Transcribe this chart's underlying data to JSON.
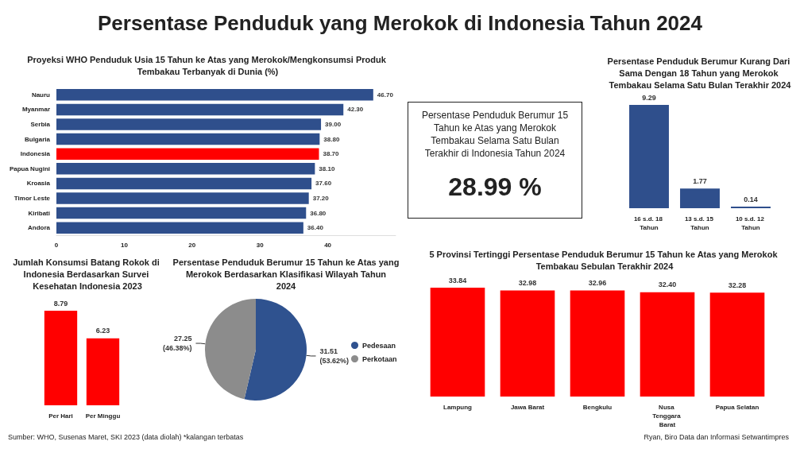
{
  "chart_data": [
    {
      "type": "other",
      "title": "Persentase Penduduk yang Merokok di Indonesia Tahun 2024",
      "annotations": [
        "Sumber: WHO, Susenas Maret, SKI 2023 (data diolah) *kalangan terbatas",
        "Ryan, Biro Data dan Informasi Setwantimpres"
      ]
    },
    {
      "type": "bar",
      "orientation": "horizontal",
      "title": "Proyeksi WHO Penduduk Usia 15 Tahun ke Atas yang Merokok/Mengkonsumsi Produk Tembakau Terbanyak di Dunia (%)",
      "categories": [
        "Nauru",
        "Myanmar",
        "Serbia",
        "Bulgaria",
        "Indonesia",
        "Papua Nugini",
        "Kroasia",
        "Timor Leste",
        "Kiribati",
        "Andora"
      ],
      "values": [
        46.7,
        42.3,
        39.0,
        38.8,
        38.7,
        38.1,
        37.6,
        37.2,
        36.8,
        36.4
      ],
      "colors": [
        "#2f4f8c",
        "#2f4f8c",
        "#2f4f8c",
        "#2f4f8c",
        "#ff0000",
        "#2f4f8c",
        "#2f4f8c",
        "#2f4f8c",
        "#2f4f8c",
        "#2f4f8c"
      ],
      "value_labels": [
        "46.70",
        "42.30",
        "39.00",
        "38.80",
        "38.70",
        "38.10",
        "37.60",
        "37.20",
        "36.80",
        "36.40"
      ],
      "xlim": [
        0,
        50
      ],
      "xticks": [
        0,
        10,
        20,
        30,
        40
      ]
    },
    {
      "type": "other",
      "title": "Persentase Penduduk Berumur 15 Tahun ke Atas yang Merokok Tembakau Selama Satu Bulan Terakhir di Indonesia Tahun 2024",
      "annotations": [
        "28.99 %"
      ]
    },
    {
      "type": "bar",
      "title": "Persentase Penduduk Berumur Kurang Dari Sama Dengan 18 Tahun yang Merokok Tembakau Selama Satu Bulan Terakhir 2024",
      "categories": [
        "16 s.d. 18 Tahun",
        "13 s.d. 15 Tahun",
        "10 s.d. 12 Tahun"
      ],
      "values": [
        9.29,
        1.77,
        0.14
      ],
      "color": "#2f4f8c",
      "value_labels": [
        "9.29",
        "1.77",
        "0.14"
      ]
    },
    {
      "type": "bar",
      "title": "Jumlah Konsumsi Batang Rokok di Indonesia Berdasarkan Survei Kesehatan Indonesia 2023",
      "categories": [
        "Per Hari",
        "Per Minggu"
      ],
      "values": [
        8.79,
        6.23
      ],
      "color": "#ff0000",
      "value_labels": [
        "8.79",
        "6.23"
      ]
    },
    {
      "type": "pie",
      "title": "Persentase Penduduk Berumur 15 Tahun ke Atas yang Merokok Berdasarkan Klasifikasi Wilayah Tahun 2024",
      "categories": [
        "Pedesaan",
        "Perkotaan"
      ],
      "values": [
        31.51,
        27.25
      ],
      "colors": [
        "#2f528f",
        "#8c8c8c"
      ],
      "value_labels": [
        "31.51\n(53.62%)",
        "27.25\n(46.38%)"
      ],
      "legend": "right"
    },
    {
      "type": "bar",
      "title": "5 Provinsi Tertinggi Persentase Penduduk Berumur 15 Tahun ke Atas yang Merokok Tembakau Sebulan Terakhir 2024",
      "categories": [
        "Lampung",
        "Jawa Barat",
        "Bengkulu",
        "Nusa Tenggara Barat",
        "Papua Selatan"
      ],
      "values": [
        33.84,
        32.98,
        32.96,
        32.4,
        32.28
      ],
      "color": "#ff0000",
      "value_labels": [
        "33.84",
        "32.98",
        "32.96",
        "32.40",
        "32.28"
      ]
    }
  ]
}
